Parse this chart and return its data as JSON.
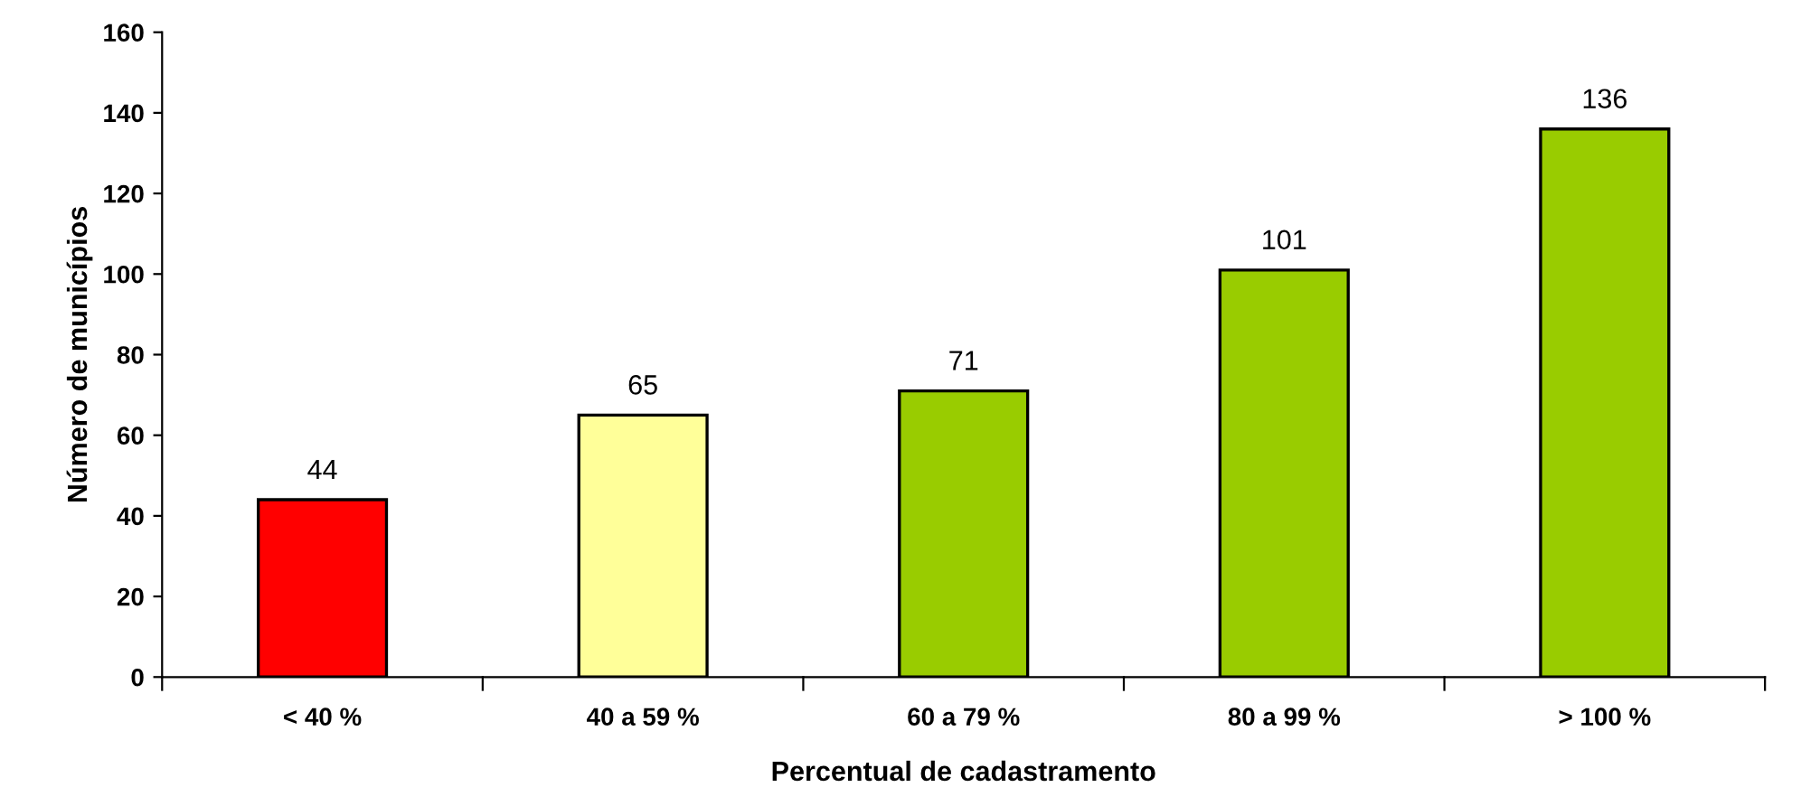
{
  "chart_data": {
    "type": "bar",
    "xlabel": "Percentual de cadastramento",
    "ylabel": "Número de municípios",
    "categories": [
      "< 40 %",
      "40 a 59 %",
      "60 a 79 %",
      "80 a 99 %",
      "> 100 %"
    ],
    "values": [
      44,
      65,
      71,
      101,
      136
    ],
    "colors": [
      "#ff0000",
      "#ffff99",
      "#99cc00",
      "#99cc00",
      "#99cc00"
    ],
    "ylim": [
      0,
      160
    ],
    "yticks": [
      0,
      20,
      40,
      60,
      80,
      100,
      120,
      140,
      160
    ],
    "grid": false,
    "data_labels": true
  }
}
